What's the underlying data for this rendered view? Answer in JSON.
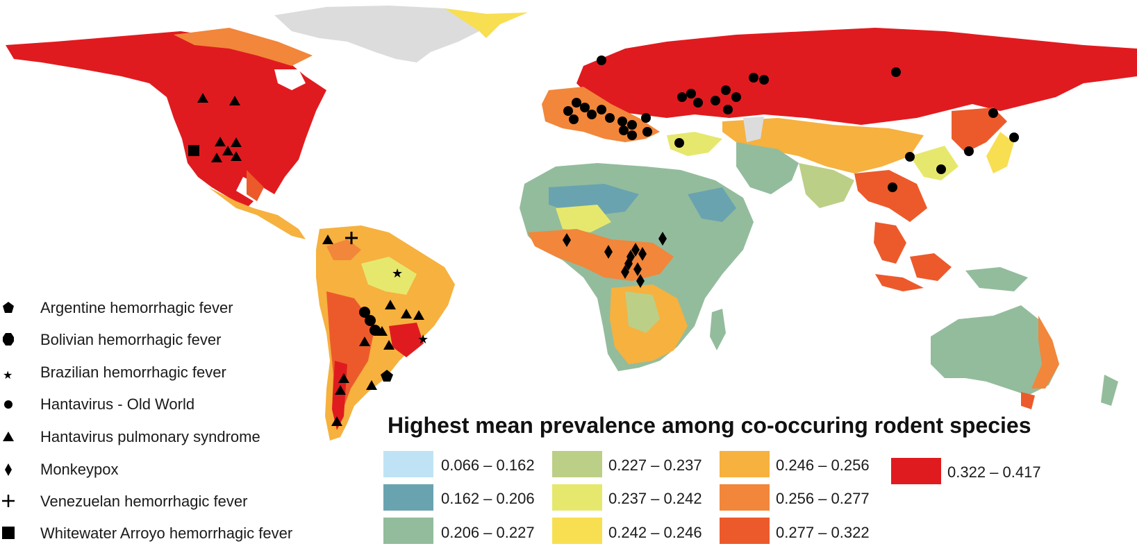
{
  "legend_symbols": [
    {
      "label": "Argentine hemorrhagic fever",
      "icon": "pentagon-icon"
    },
    {
      "label": "Bolivian hemorrhagic fever",
      "icon": "octagon-icon"
    },
    {
      "label": "Brazilian hemorrhagic fever",
      "icon": "star-icon"
    },
    {
      "label": "Hantavirus - Old World",
      "icon": "circle-icon"
    },
    {
      "label": "Hantavirus pulmonary syndrome",
      "icon": "triangle-icon"
    },
    {
      "label": "Monkeypox",
      "icon": "diamond-icon"
    },
    {
      "label": "Venezuelan hemorrhagic fever",
      "icon": "cross-icon"
    },
    {
      "label": "Whitewater Arroyo hemorrhagic fever",
      "icon": "square-icon"
    }
  ],
  "prevalence_title": "Highest mean prevalence among co-occuring rodent species",
  "prevalence_classes": [
    {
      "label": "0.066 – 0.162",
      "color": "#bfe3f5"
    },
    {
      "label": "0.162 – 0.206",
      "color": "#6aa3b0"
    },
    {
      "label": "0.206 – 0.227",
      "color": "#93bc9c"
    },
    {
      "label": "0.227 – 0.237",
      "color": "#bccf86"
    },
    {
      "label": "0.237 – 0.242",
      "color": "#e6e86e"
    },
    {
      "label": "0.242 – 0.246",
      "color": "#f8df52"
    },
    {
      "label": "0.246 – 0.256",
      "color": "#f6b13f"
    },
    {
      "label": "0.256 – 0.277",
      "color": "#f2863a"
    },
    {
      "label": "0.277 – 0.322",
      "color": "#ec5a2b"
    },
    {
      "label": "0.322 – 0.417",
      "color": "#e01b1f"
    }
  ],
  "colors": {
    "ice": "#dcdcdc",
    "ocean": "#ffffff",
    "marker": "#000000"
  }
}
